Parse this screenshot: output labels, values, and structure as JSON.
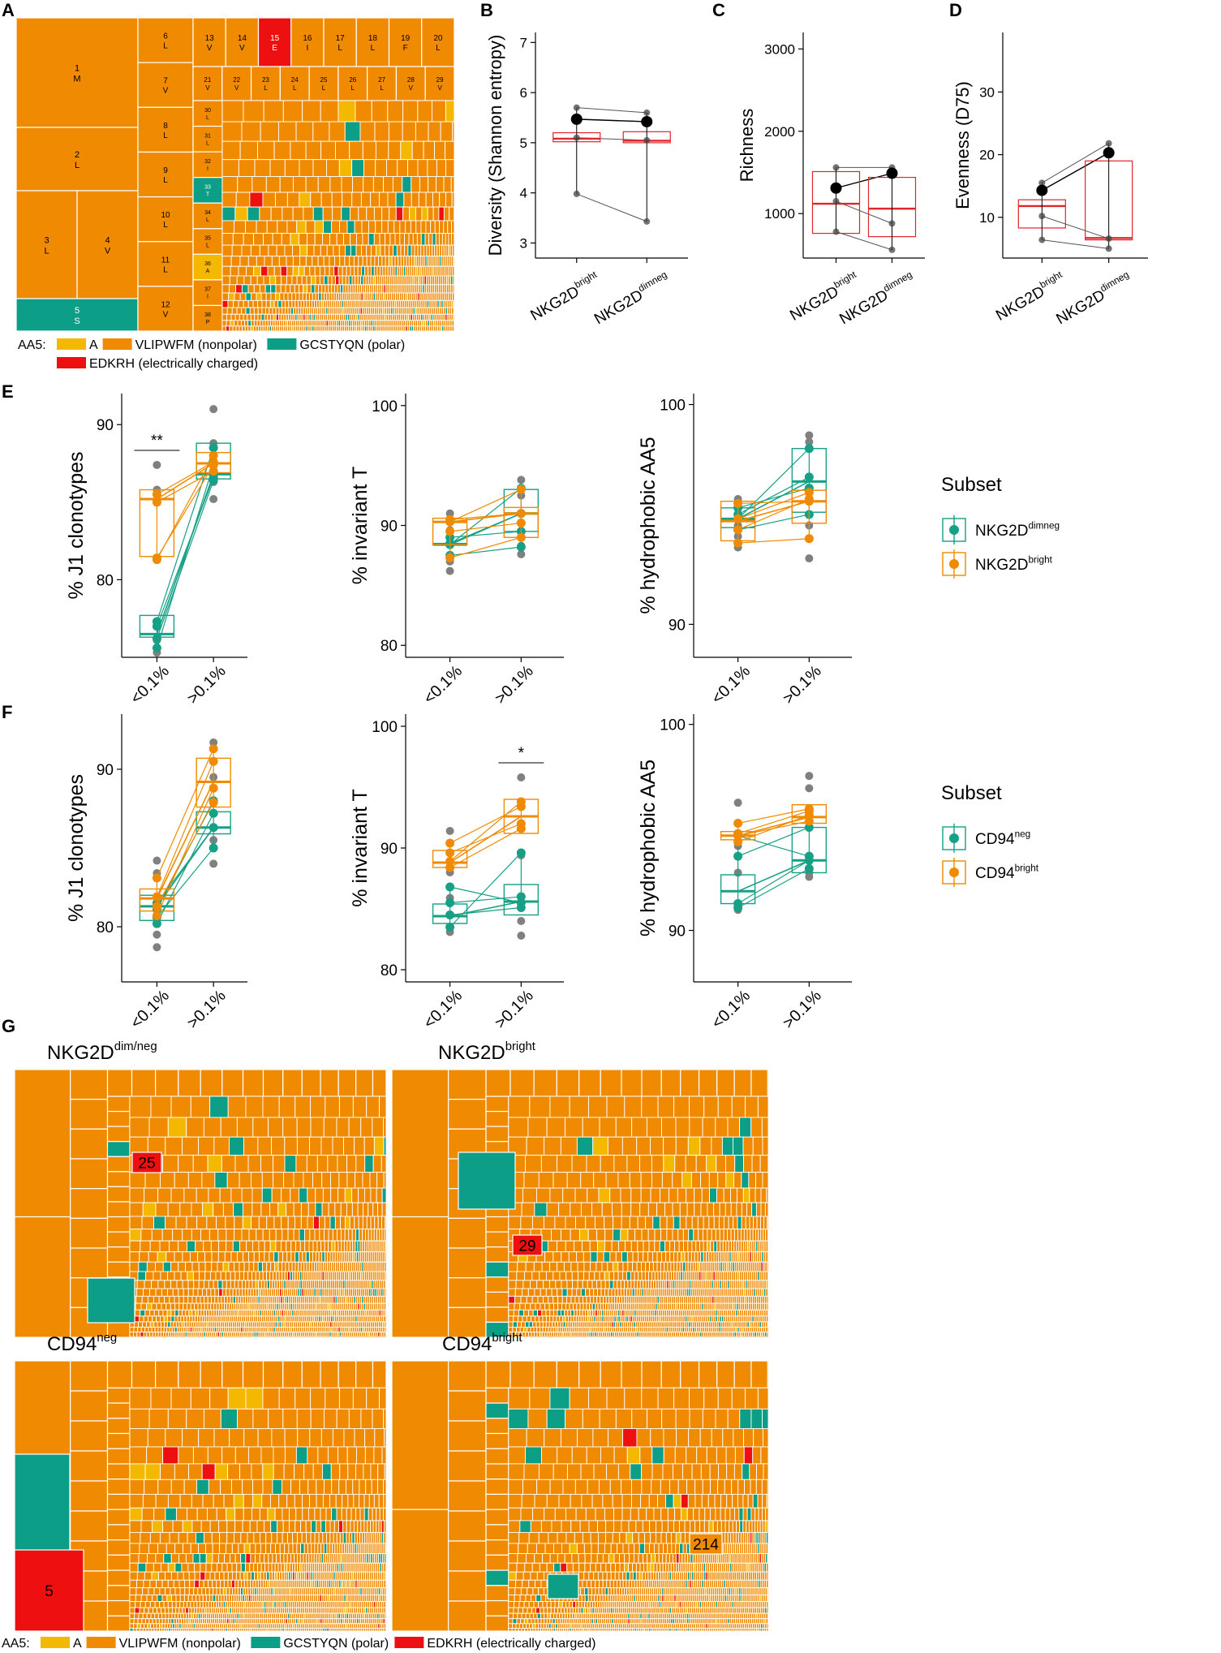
{
  "colors": {
    "A": "#f5b800",
    "nonpolar": "#f08a00",
    "polar": "#0d9e88",
    "charged": "#ee1010",
    "teal": "#16a085",
    "orange": "#f08a00",
    "red": "#e0252b",
    "grey": "#808080"
  },
  "labels": {
    "A": "A",
    "B": "B",
    "C": "C",
    "D": "D",
    "E": "E",
    "F": "F",
    "G": "G"
  },
  "legend_aa5": {
    "prefix": "AA5:",
    "items": [
      {
        "key": "A",
        "label": "A",
        "color": "#f5b800"
      },
      {
        "key": "nonpolar",
        "label": "VLIPWFM (nonpolar)",
        "color": "#f08a00"
      },
      {
        "key": "polar",
        "label": "GCSTYQN (polar)",
        "color": "#0d9e88"
      },
      {
        "key": "charged",
        "label": "EDKRH (electrically charged)",
        "color": "#ee1010"
      }
    ]
  },
  "panelA": {
    "big_cells": [
      {
        "n": "1",
        "aa": "M"
      },
      {
        "n": "2",
        "aa": "L"
      },
      {
        "n": "3",
        "aa": "L"
      },
      {
        "n": "4",
        "aa": "V"
      },
      {
        "n": "5",
        "aa": "S"
      }
    ],
    "col2_cells": [
      {
        "n": "6",
        "aa": "L"
      },
      {
        "n": "7",
        "aa": "V"
      },
      {
        "n": "8",
        "aa": "L"
      },
      {
        "n": "9",
        "aa": "L"
      },
      {
        "n": "10",
        "aa": "L"
      },
      {
        "n": "11",
        "aa": "L"
      },
      {
        "n": "12",
        "aa": "V"
      }
    ],
    "row1_cells": [
      {
        "n": "13",
        "aa": "V"
      },
      {
        "n": "14",
        "aa": "V"
      },
      {
        "n": "15",
        "aa": "E"
      },
      {
        "n": "16",
        "aa": "I"
      },
      {
        "n": "17",
        "aa": "L"
      },
      {
        "n": "18",
        "aa": "L"
      },
      {
        "n": "19",
        "aa": "F"
      },
      {
        "n": "20",
        "aa": "L"
      }
    ],
    "row2_cells": [
      {
        "n": "21",
        "aa": "V"
      },
      {
        "n": "22",
        "aa": "V"
      },
      {
        "n": "23",
        "aa": "L"
      },
      {
        "n": "24",
        "aa": "L"
      },
      {
        "n": "25",
        "aa": "L"
      },
      {
        "n": "26",
        "aa": "L"
      },
      {
        "n": "27",
        "aa": "L"
      },
      {
        "n": "28",
        "aa": "V"
      },
      {
        "n": "29",
        "aa": "V"
      }
    ],
    "col3_cells": [
      {
        "n": "30",
        "aa": "L"
      },
      {
        "n": "31",
        "aa": "L"
      },
      {
        "n": "32",
        "aa": "I"
      },
      {
        "n": "33",
        "aa": "T"
      },
      {
        "n": "34",
        "aa": "L"
      },
      {
        "n": "35",
        "aa": "L"
      },
      {
        "n": "36",
        "aa": "A"
      },
      {
        "n": "37",
        "aa": "I"
      },
      {
        "n": "38",
        "aa": "P"
      }
    ]
  },
  "panelG": {
    "titles": [
      {
        "main": "NKG2D",
        "sup": "dim/neg"
      },
      {
        "main": "NKG2D",
        "sup": "bright"
      },
      {
        "main": "CD94",
        "sup": "neg"
      },
      {
        "main": "CD94",
        "sup": "bright"
      }
    ],
    "highlights": [
      "25",
      "29",
      "5",
      "214"
    ]
  },
  "chart_data": [
    {
      "id": "B",
      "type": "box",
      "ylabel": "Diversity (Shannon entropy)",
      "ylim": [
        2.7,
        7.2
      ],
      "yticks": [
        3,
        4,
        5,
        6,
        7
      ],
      "categories": [
        {
          "main": "NKG2D",
          "sup": "bright"
        },
        {
          "main": "NKG2D",
          "sup": "dimneg"
        }
      ],
      "boxes": [
        {
          "q1": 5.02,
          "med": 5.08,
          "q3": 5.2,
          "lo": 5.02,
          "hi": 5.2
        },
        {
          "q1": 5.0,
          "med": 5.04,
          "q3": 5.22,
          "lo": 5.0,
          "hi": 5.22
        }
      ],
      "points": [
        [
          5.7,
          5.47,
          5.1,
          3.98
        ],
        [
          5.6,
          5.42,
          5.05,
          3.43
        ]
      ],
      "means": [
        5.47,
        5.42
      ]
    },
    {
      "id": "C",
      "type": "box",
      "ylabel": "Richness",
      "ylim": [
        460,
        3200
      ],
      "yticks": [
        1000,
        2000,
        3000
      ],
      "categories": [
        {
          "main": "NKG2D",
          "sup": "bright"
        },
        {
          "main": "NKG2D",
          "sup": "dimneg"
        }
      ],
      "boxes": [
        {
          "q1": 760,
          "med": 1120,
          "q3": 1510,
          "lo": 760,
          "hi": 1510
        },
        {
          "q1": 720,
          "med": 1060,
          "q3": 1440,
          "lo": 720,
          "hi": 1440
        }
      ],
      "points": [
        [
          1560,
          1310,
          1150,
          780
        ],
        [
          1560,
          1490,
          880,
          560
        ]
      ],
      "means": [
        1310,
        1490
      ]
    },
    {
      "id": "D",
      "type": "box",
      "ylabel": "Evenness (D75)",
      "ylim": [
        3.5,
        39.5
      ],
      "yticks": [
        10,
        20,
        30
      ],
      "categories": [
        {
          "main": "NKG2D",
          "sup": "bright"
        },
        {
          "main": "NKG2D",
          "sup": "dimneg"
        }
      ],
      "boxes": [
        {
          "q1": 8.3,
          "med": 11.8,
          "q3": 12.8,
          "lo": 8.3,
          "hi": 12.8
        },
        {
          "q1": 6.4,
          "med": 6.7,
          "q3": 19.0,
          "lo": 6.4,
          "hi": 19.0
        }
      ],
      "points": [
        [
          15.5,
          14.3,
          10.2,
          6.4
        ],
        [
          21.8,
          20.3,
          6.6,
          5.0
        ]
      ],
      "means": [
        14.3,
        20.3
      ]
    },
    {
      "id": "E1",
      "type": "paired-box",
      "ylabel": "% J1 clonotypes",
      "ylim": [
        75,
        92
      ],
      "yticks": [
        80,
        90
      ],
      "categories": [
        "<0.1%",
        ">0.1%"
      ],
      "series": [
        {
          "name": "NKG2Ddimneg",
          "color": "teal",
          "boxes": [
            {
              "q1": 76.3,
              "med": 76.5,
              "q3": 77.7
            },
            {
              "q1": 86.5,
              "med": 86.8,
              "q3": 88.8
            }
          ],
          "values": [
            [
              77.0,
              76.2,
              75.6,
              77.3
            ],
            [
              86.6,
              86.4,
              87.4,
              88.5
            ]
          ]
        },
        {
          "name": "NKG2Dbright",
          "color": "orange",
          "boxes": [
            {
              "q1": 81.5,
              "med": 85.2,
              "q3": 85.8
            },
            {
              "q1": 86.9,
              "med": 87.5,
              "q3": 88.2
            }
          ],
          "values": [
            [
              85.5,
              85.0,
              81.3,
              81.4
            ],
            [
              87.6,
              87.0,
              88.0,
              87.4
            ]
          ]
        }
      ],
      "grey_points": [
        [
          87.4,
          85.8,
          75.3,
          76.1
        ],
        [
          91.0,
          88.8,
          86.3,
          85.2
        ]
      ],
      "annotation": "**",
      "annotation_index": 0
    },
    {
      "id": "E2",
      "type": "paired-box",
      "ylabel": "% invariant T",
      "ylim": [
        79,
        101
      ],
      "yticks": [
        80,
        90,
        100
      ],
      "categories": [
        "<0.1%",
        ">0.1%"
      ],
      "series": [
        {
          "name": "NKG2Ddimneg",
          "color": "teal",
          "boxes": [
            {
              "q1": 88.4,
              "med": 88.4,
              "q3": 88.5
            },
            {
              "q1": 89.5,
              "med": 91.0,
              "q3": 93.0
            }
          ],
          "values": [
            [
              88.4,
              89.0,
              88.5,
              87.5
            ],
            [
              93.1,
              89.5,
              91.0,
              88.2
            ]
          ]
        },
        {
          "name": "NKG2Dbright",
          "color": "orange",
          "boxes": [
            {
              "q1": 88.4,
              "med": 90.3,
              "q3": 90.6
            },
            {
              "q1": 89.0,
              "med": 91.0,
              "q3": 91.5
            }
          ],
          "values": [
            [
              90.3,
              90.5,
              87.3,
              89.5
            ],
            [
              93.0,
              91.0,
              89.0,
              90.2
            ]
          ]
        }
      ],
      "grey_points": [
        [
          91.0,
          86.2,
          87.0,
          89.6
        ],
        [
          93.8,
          87.6,
          88.3,
          92.5
        ]
      ]
    },
    {
      "id": "E3",
      "type": "paired-box",
      "ylabel": "% hydrophobic AA5",
      "ylim": [
        88.5,
        100.5
      ],
      "yticks": [
        90,
        100
      ],
      "categories": [
        "<0.1%",
        ">0.1%"
      ],
      "series": [
        {
          "name": "NKG2Ddimneg",
          "color": "teal",
          "boxes": [
            {
              "q1": 94.4,
              "med": 94.8,
              "q3": 95.3
            },
            {
              "q1": 95.1,
              "med": 96.5,
              "q3": 98.0
            }
          ],
          "values": [
            [
              94.8,
              95.3,
              94.3,
              95.0
            ],
            [
              98.0,
              96.2,
              95.0,
              96.7
            ]
          ]
        },
        {
          "name": "NKG2Dbright",
          "color": "orange",
          "boxes": [
            {
              "q1": 93.8,
              "med": 94.7,
              "q3": 95.6
            },
            {
              "q1": 94.6,
              "med": 95.6,
              "q3": 96.1
            }
          ],
          "values": [
            [
              95.5,
              94.3,
              93.7,
              94.8
            ],
            [
              95.6,
              95.7,
              93.9,
              96.0
            ]
          ]
        }
      ],
      "grey_points": [
        [
          95.7,
          93.5,
          94.0,
          94.5
        ],
        [
          98.6,
          93.0,
          94.5,
          98.3
        ]
      ]
    },
    {
      "id": "F1",
      "type": "paired-box",
      "ylabel": "% J1 clonotypes",
      "ylim": [
        76.5,
        93.5
      ],
      "yticks": [
        80,
        90
      ],
      "categories": [
        "<0.1%",
        ">0.1%"
      ],
      "series": [
        {
          "name": "CD94neg",
          "color": "teal",
          "boxes": [
            {
              "q1": 80.4,
              "med": 81.3,
              "q3": 82.0
            },
            {
              "q1": 85.9,
              "med": 86.3,
              "q3": 87.3
            }
          ],
          "values": [
            [
              81.1,
              80.6,
              81.5,
              80.2
            ],
            [
              88.0,
              85.0,
              86.3,
              87.2
            ]
          ]
        },
        {
          "name": "CD94bright",
          "color": "orange",
          "boxes": [
            {
              "q1": 81.0,
              "med": 81.8,
              "q3": 82.4
            },
            {
              "q1": 87.6,
              "med": 89.2,
              "q3": 90.7
            }
          ],
          "values": [
            [
              83.1,
              81.9,
              80.7,
              81.3
            ],
            [
              91.3,
              90.5,
              88.8,
              87.9
            ]
          ]
        }
      ],
      "grey_points": [
        [
          84.2,
          83.4,
          78.7,
          79.5
        ],
        [
          91.7,
          89.5,
          84.0,
          85.5
        ]
      ]
    },
    {
      "id": "F2",
      "type": "paired-box",
      "ylabel": "% invariant T",
      "ylim": [
        79,
        101
      ],
      "yticks": [
        80,
        90,
        100
      ],
      "categories": [
        "<0.1%",
        ">0.1%"
      ],
      "series": [
        {
          "name": "CD94neg",
          "color": "teal",
          "boxes": [
            {
              "q1": 83.8,
              "med": 84.4,
              "q3": 85.4
            },
            {
              "q1": 84.5,
              "med": 85.6,
              "q3": 87.0
            }
          ],
          "values": [
            [
              86.8,
              84.5,
              83.5,
              85.5
            ],
            [
              85.5,
              85.1,
              89.6,
              86.0
            ]
          ]
        },
        {
          "name": "CD94bright",
          "color": "orange",
          "boxes": [
            {
              "q1": 88.4,
              "med": 88.8,
              "q3": 89.8
            },
            {
              "q1": 91.2,
              "med": 92.6,
              "q3": 94.0
            }
          ],
          "values": [
            [
              90.4,
              88.4,
              88.9,
              89.6
            ],
            [
              93.4,
              91.6,
              93.8,
              92.0
            ]
          ]
        }
      ],
      "grey_points": [
        [
          91.4,
          88.0,
          83.1,
          85.9
        ],
        [
          95.8,
          89.4,
          82.8,
          84.0
        ]
      ],
      "annotation": "*",
      "annotation_index": 1
    },
    {
      "id": "F3",
      "type": "paired-box",
      "ylabel": "% hydrophobic AA5",
      "ylim": [
        87.5,
        100.5
      ],
      "yticks": [
        90,
        100
      ],
      "categories": [
        "<0.1%",
        ">0.1%"
      ],
      "series": [
        {
          "name": "CD94neg",
          "color": "teal",
          "boxes": [
            {
              "q1": 91.3,
              "med": 91.9,
              "q3": 92.7
            },
            {
              "q1": 92.8,
              "med": 93.4,
              "q3": 95.0
            }
          ],
          "values": [
            [
              93.6,
              91.3,
              91.1,
              94.6
            ],
            [
              95.0,
              93.4,
              93.0,
              93.6
            ]
          ]
        },
        {
          "name": "CD94bright",
          "color": "orange",
          "boxes": [
            {
              "q1": 94.4,
              "med": 94.6,
              "q3": 94.8
            },
            {
              "q1": 95.2,
              "med": 95.5,
              "q3": 96.1
            }
          ],
          "values": [
            [
              95.2,
              94.6,
              94.3,
              94.7
            ],
            [
              95.9,
              95.3,
              95.6,
              95.8
            ]
          ]
        }
      ],
      "grey_points": [
        [
          96.2,
          91.0,
          92.8,
          94.1
        ],
        [
          97.5,
          92.6,
          92.8,
          96.9
        ]
      ]
    }
  ],
  "legends": {
    "E": {
      "title": "Subset",
      "items": [
        {
          "main": "NKG2D",
          "sup": "dimneg",
          "color": "teal"
        },
        {
          "main": "NKG2D",
          "sup": "bright",
          "color": "orange"
        }
      ]
    },
    "F": {
      "title": "Subset",
      "items": [
        {
          "main": "CD94",
          "sup": "neg",
          "color": "teal"
        },
        {
          "main": "CD94",
          "sup": "bright",
          "color": "orange"
        }
      ]
    }
  }
}
